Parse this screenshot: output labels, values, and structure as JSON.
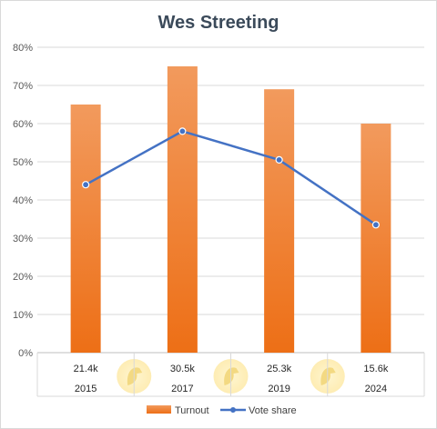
{
  "chart_data": {
    "type": "bar",
    "title": "Wes Streeting",
    "categories": [
      "2015",
      "2017",
      "2019",
      "2024"
    ],
    "category_labels": [
      "21.4k",
      "30.5k",
      "25.3k",
      "15.6k"
    ],
    "series": [
      {
        "name": "Turnout",
        "type": "bar",
        "values": [
          65,
          75,
          69,
          60
        ],
        "color": "#ef7b2c"
      },
      {
        "name": "Vote share",
        "type": "line",
        "values": [
          44,
          58,
          50.5,
          33.5
        ],
        "color": "#4472c4"
      }
    ],
    "ylim": [
      0,
      80
    ],
    "y_ticks": [
      "0%",
      "10%",
      "20%",
      "30%",
      "40%",
      "50%",
      "60%",
      "70%",
      "80%"
    ],
    "y_tick_values": [
      0,
      10,
      20,
      30,
      40,
      50,
      60,
      70,
      80
    ],
    "grid": true,
    "legend": "bottom",
    "xlabel": "",
    "ylabel": ""
  }
}
